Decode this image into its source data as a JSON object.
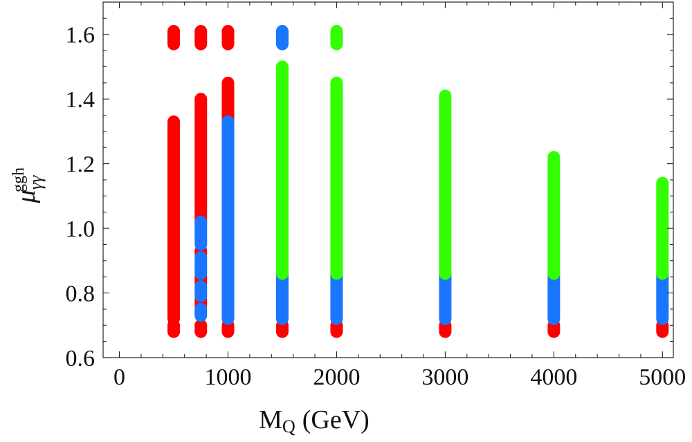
{
  "chart_data": {
    "type": "scatter",
    "title": "",
    "xlabel": "M",
    "xlabel_sub": "Q",
    "xlabel_unit": "(GeV)",
    "ylabel": "μ",
    "ylabel_sub": "γγ",
    "ylabel_sup": "ggh",
    "xlim": [
      -150,
      5100
    ],
    "ylim": [
      0.6,
      1.7
    ],
    "x_ticks": [
      0,
      1000,
      2000,
      3000,
      4000,
      5000
    ],
    "x_tick_labels": [
      "0",
      "1000",
      "2000",
      "3000",
      "4000",
      "5000"
    ],
    "y_ticks": [
      0.6,
      0.8,
      1.0,
      1.2,
      1.4,
      1.6
    ],
    "y_tick_labels": [
      "0.6",
      "0.8",
      "1.0",
      "1.2",
      "1.4",
      "1.6"
    ],
    "x_minor_step": 200,
    "y_minor_step": 0.05,
    "grid": false,
    "colors": {
      "red": "#ff0000",
      "blue": "#1a75ff",
      "green": "#33ff00"
    },
    "series": [
      {
        "name": "red",
        "color": "#ff0000",
        "segments": [
          {
            "x": 500,
            "y0": 1.57,
            "y1": 1.61
          },
          {
            "x": 500,
            "y0": 0.72,
            "y1": 1.33
          },
          {
            "x": 500,
            "y0": 0.68,
            "y1": 0.7
          },
          {
            "x": 750,
            "y0": 1.57,
            "y1": 1.61
          },
          {
            "x": 750,
            "y0": 1.02,
            "y1": 1.4
          },
          {
            "x": 750,
            "y0": 0.92,
            "y1": 0.93
          },
          {
            "x": 750,
            "y0": 0.83,
            "y1": 0.85
          },
          {
            "x": 750,
            "y0": 0.76,
            "y1": 0.78
          },
          {
            "x": 750,
            "y0": 0.68,
            "y1": 0.7
          },
          {
            "x": 1000,
            "y0": 1.57,
            "y1": 1.61
          },
          {
            "x": 1000,
            "y0": 1.33,
            "y1": 1.45
          },
          {
            "x": 1000,
            "y0": 0.68,
            "y1": 0.7
          },
          {
            "x": 1500,
            "y0": 0.68,
            "y1": 0.7
          },
          {
            "x": 2000,
            "y0": 0.68,
            "y1": 0.7
          },
          {
            "x": 3000,
            "y0": 0.68,
            "y1": 0.7
          },
          {
            "x": 4000,
            "y0": 0.68,
            "y1": 0.7
          },
          {
            "x": 5000,
            "y0": 0.68,
            "y1": 0.7
          }
        ]
      },
      {
        "name": "blue",
        "color": "#1a75ff",
        "segments": [
          {
            "x": 750,
            "y0": 0.95,
            "y1": 1.02
          },
          {
            "x": 750,
            "y0": 0.86,
            "y1": 0.91
          },
          {
            "x": 750,
            "y0": 0.79,
            "y1": 0.82
          },
          {
            "x": 750,
            "y0": 0.73,
            "y1": 0.75
          },
          {
            "x": 1000,
            "y0": 0.72,
            "y1": 1.33
          },
          {
            "x": 1500,
            "y0": 1.57,
            "y1": 1.61
          },
          {
            "x": 1500,
            "y0": 0.72,
            "y1": 0.86
          },
          {
            "x": 2000,
            "y0": 0.72,
            "y1": 0.86
          },
          {
            "x": 3000,
            "y0": 0.72,
            "y1": 0.86
          },
          {
            "x": 4000,
            "y0": 0.72,
            "y1": 0.86
          },
          {
            "x": 5000,
            "y0": 0.72,
            "y1": 0.86
          }
        ]
      },
      {
        "name": "green",
        "color": "#33ff00",
        "segments": [
          {
            "x": 1500,
            "y0": 0.86,
            "y1": 1.5
          },
          {
            "x": 2000,
            "y0": 1.57,
            "y1": 1.61
          },
          {
            "x": 2000,
            "y0": 0.86,
            "y1": 1.45
          },
          {
            "x": 3000,
            "y0": 0.86,
            "y1": 1.41
          },
          {
            "x": 4000,
            "y0": 0.86,
            "y1": 1.22
          },
          {
            "x": 5000,
            "y0": 0.86,
            "y1": 1.14
          }
        ]
      }
    ]
  }
}
